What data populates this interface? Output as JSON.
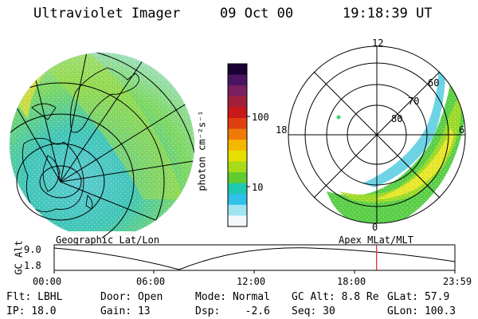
{
  "header": {
    "title": "Ultraviolet Imager",
    "date": "09 Oct 00",
    "time": "19:18:39 UT"
  },
  "colorbar": {
    "unit_label": "photon cm⁻²s⁻¹",
    "ticks": [
      "100",
      "10"
    ],
    "colors": [
      "#1a0033",
      "#4a1560",
      "#7a2060",
      "#a0203a",
      "#c81818",
      "#e04010",
      "#f07a08",
      "#f5b800",
      "#e5e000",
      "#a8dc18",
      "#60cc30",
      "#20c8b0",
      "#30c0e8",
      "#a0e4f0",
      "#f4f8fa"
    ]
  },
  "left_panel": {
    "label": "Geographic Lat/Lon"
  },
  "right_panel": {
    "label": "Apex MLat/MLT",
    "mlt_labels": [
      "12",
      "18",
      "6",
      "0"
    ],
    "mlat_labels": [
      "60",
      "70",
      "80"
    ]
  },
  "altitude_plot": {
    "ylabel": "GC Alt",
    "yticks": [
      "9.0",
      "1.8"
    ],
    "xticks": [
      "00:00",
      "06:00",
      "12:00",
      "18:00",
      "23:59"
    ],
    "current_hour": 19.31
  },
  "info": {
    "flt": "Flt: LBHL",
    "door": "Door: Open",
    "mode": "Mode: Normal",
    "gc_alt": "GC Alt: 8.8 Re",
    "glat": "GLat: 57.9",
    "ip": "IP: 18.0",
    "gain": "Gain: 13",
    "dsp": "Dsp:    -2.6",
    "seq": "Seq: 30",
    "glon": "GLon: 100.3"
  },
  "colors": {
    "marker": "#e02020",
    "aurora_peak": "#f5e020",
    "aurora_mid": "#60cc30",
    "aurora_low": "#30c0d8"
  }
}
